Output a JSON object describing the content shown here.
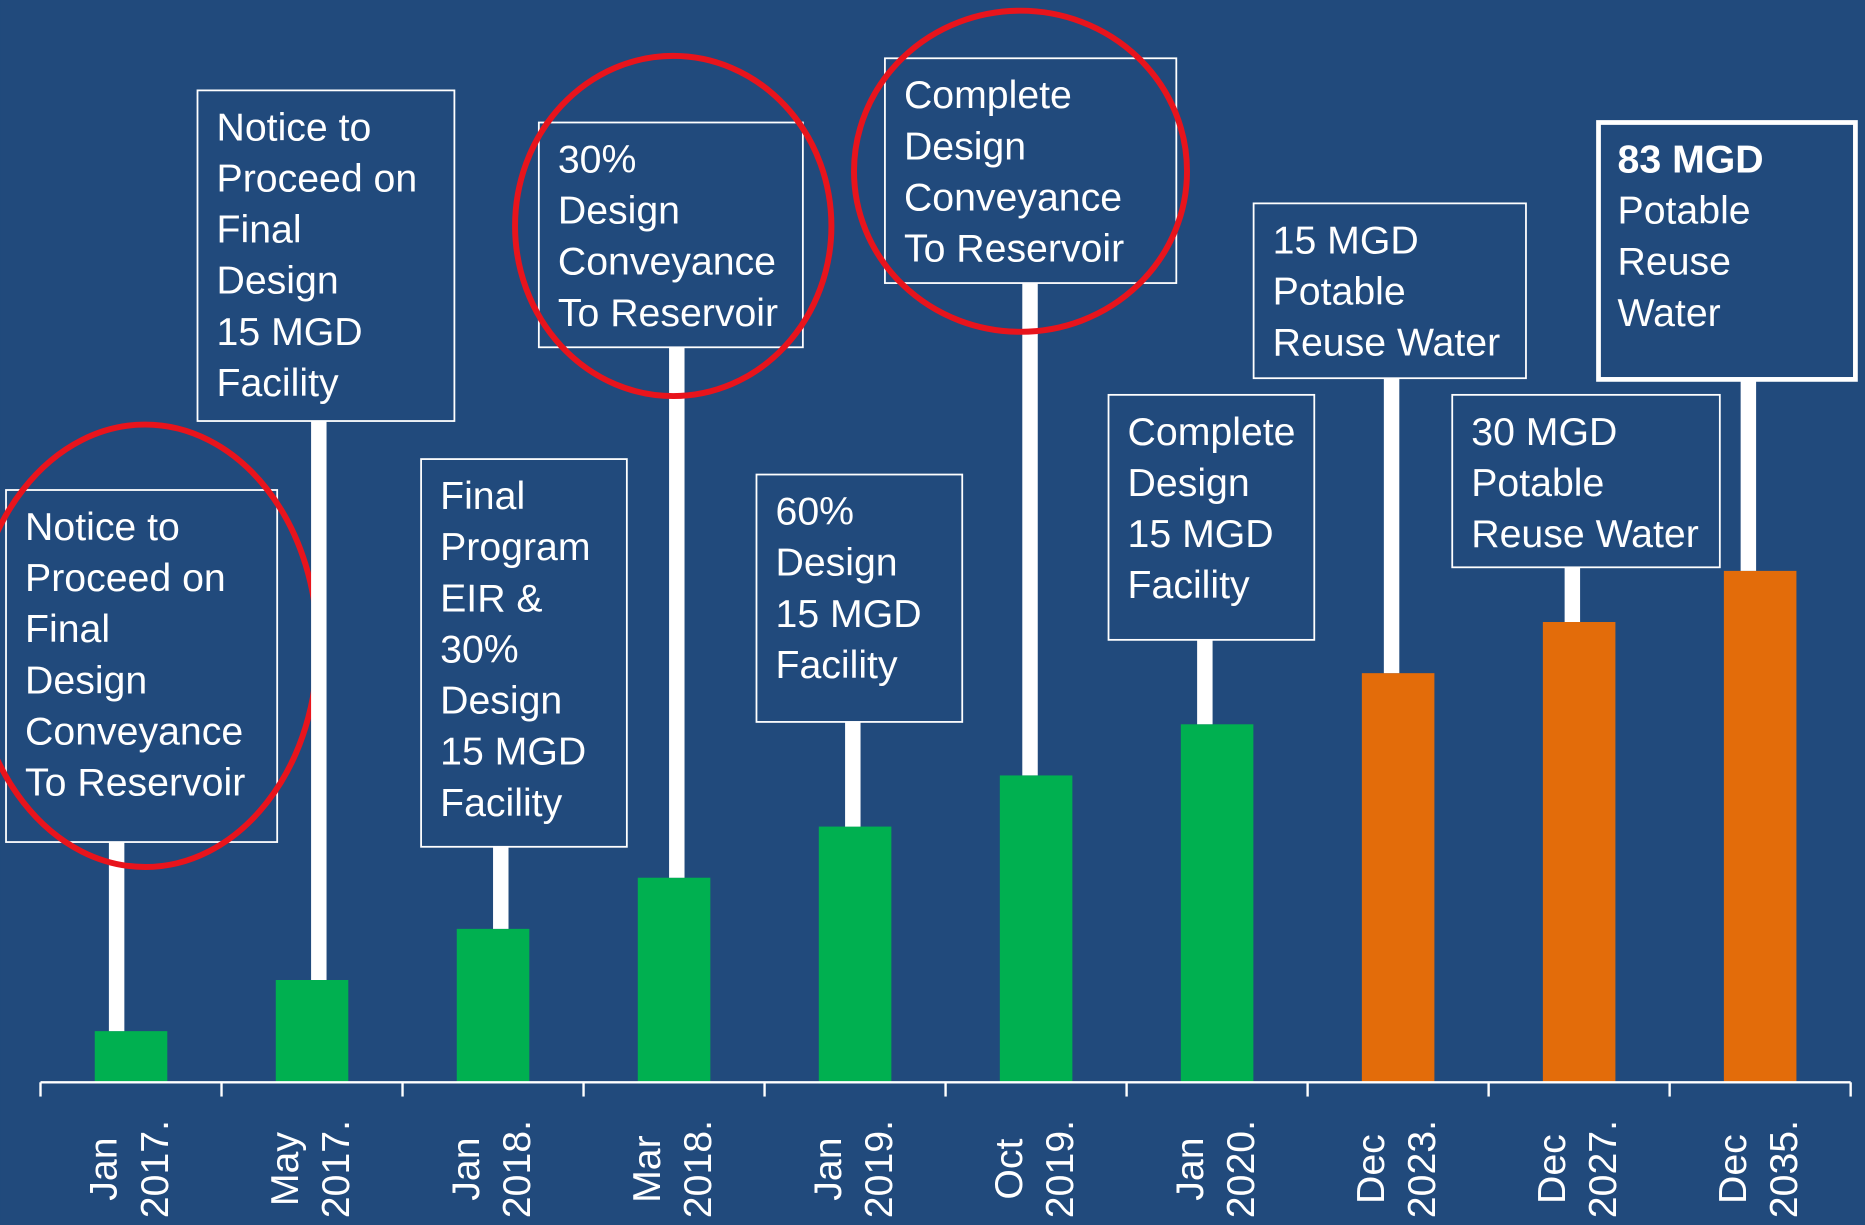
{
  "chart_data": {
    "type": "bar",
    "categories": [
      "Jan 2017.",
      "May 2017.",
      "Jan 2018.",
      "Mar 2018.",
      "Jan 2019.",
      "Oct 2019.",
      "Jan 2020.",
      "Dec 2023.",
      "Dec 2027.",
      "Dec 2035."
    ],
    "values": [
      1,
      2,
      3,
      4,
      5,
      6,
      7,
      8,
      9,
      10
    ],
    "colors": [
      "#00b050",
      "#00b050",
      "#00b050",
      "#00b050",
      "#00b050",
      "#00b050",
      "#00b050",
      "#e36c0a",
      "#e36c0a",
      "#e36c0a"
    ],
    "ylim": [
      0,
      21
    ],
    "annotations": [
      {
        "lines": [
          "Notice to",
          "Proceed on",
          "Final",
          "Design",
          "Conveyance",
          "To Reservoir"
        ],
        "circled": true
      },
      {
        "lines": [
          "Notice to",
          "Proceed on",
          "Final",
          "Design",
          "15 MGD",
          "Facility"
        ],
        "circled": false
      },
      {
        "lines": [
          "Final",
          "Program",
          "EIR &",
          "30%",
          "Design",
          "15 MGD",
          "Facility"
        ],
        "circled": false
      },
      {
        "lines": [
          "30%",
          "Design",
          "Conveyance",
          "To Reservoir"
        ],
        "circled": true
      },
      {
        "lines": [
          "60%",
          "Design",
          "15 MGD",
          "Facility"
        ],
        "circled": false
      },
      {
        "lines": [
          "Complete",
          "Design",
          "Conveyance",
          "To Reservoir"
        ],
        "circled": true
      },
      {
        "lines": [
          "Complete",
          "Design",
          "15 MGD",
          "Facility"
        ],
        "circled": false
      },
      {
        "lines": [
          "15 MGD",
          "Potable",
          "Reuse Water"
        ],
        "circled": false
      },
      {
        "lines": [
          "30 MGD",
          "Potable",
          "Reuse Water"
        ],
        "circled": false
      },
      {
        "lines": [
          "83 MGD",
          "Potable",
          "Reuse",
          "Water"
        ],
        "circled": false,
        "bold_first_line": true
      }
    ]
  }
}
